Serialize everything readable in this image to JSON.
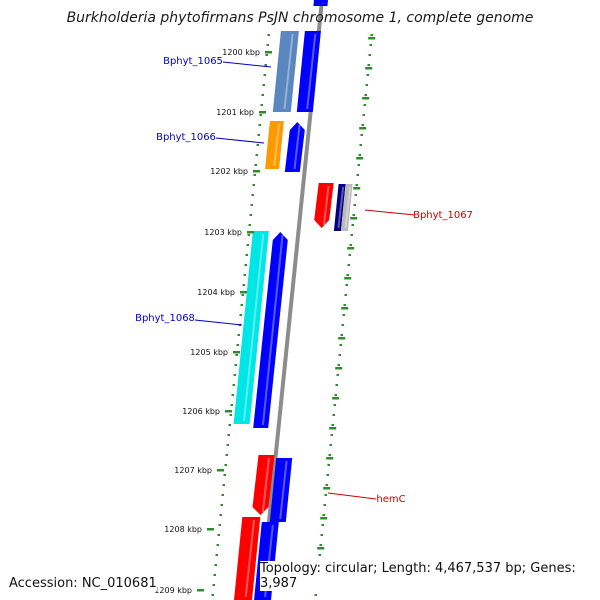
{
  "title": "Burkholderia phytofirmans PsJN chromosome 1, complete genome",
  "footer": {
    "accession": "Accession: NC_010681",
    "topology": "Topology: circular; Length: 4,467,537 bp; Genes: 3,987"
  },
  "ruler_labels": [
    "1200 kbp",
    "1201 kbp",
    "1202 kbp",
    "1203 kbp",
    "1204 kbp",
    "1205 kbp",
    "1206 kbp",
    "1207 kbp",
    "1208 kbp",
    "1209 kbp"
  ],
  "gene_labels": [
    {
      "name": "Bphyt_1065",
      "color": "#0000cc"
    },
    {
      "name": "Bphyt_1066",
      "color": "#0000cc"
    },
    {
      "name": "Bphyt_1067",
      "color": "#cc0000"
    },
    {
      "name": "Bphyt_1068",
      "color": "#0000cc"
    },
    {
      "name": "hemC",
      "color": "#cc0000"
    }
  ],
  "colors": {
    "backbone": "#8c8c8c",
    "tick": "#2e8b2e",
    "forward_cds": "#0000ff",
    "reverse_cds": "#ff0000",
    "steelblue": "#5b87c0",
    "orange": "#ff9900",
    "cyan": "#00e5e5",
    "navy": "#000080"
  }
}
